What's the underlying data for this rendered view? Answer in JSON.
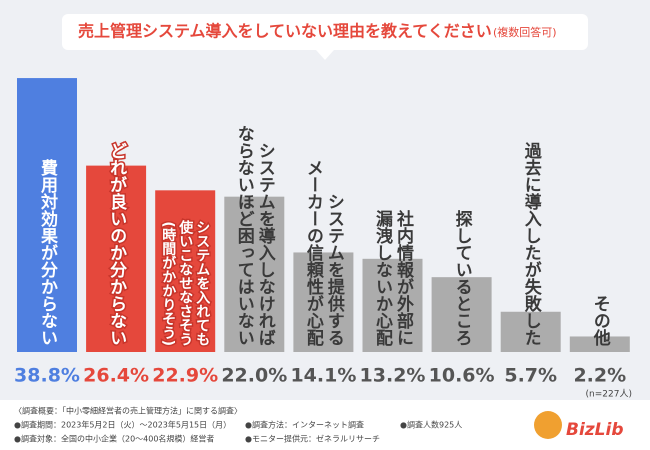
{
  "chart_data": {
    "type": "bar",
    "title": "売上管理システム導入をしていない理由を教えてください",
    "subtitle": "(複数回答可)",
    "categories": [
      [
        "費用対効果が分からない"
      ],
      [
        "どれが良いのか分からない"
      ],
      [
        "システムを入れても",
        "使いこなせなさそう",
        "(時間がかかりそう)"
      ],
      [
        "システムを導入しなければ",
        "ならないほど困ってはいない"
      ],
      [
        "システムを提供する",
        "メーカーの信頼性が心配"
      ],
      [
        "社内情報が外部に",
        "漏洩しないか心配"
      ],
      [
        "探しているところ"
      ],
      [
        "過去に導入したが失敗した"
      ],
      [
        "その他"
      ]
    ],
    "values": [
      38.8,
      26.4,
      22.9,
      22.0,
      14.1,
      13.2,
      10.6,
      5.7,
      2.2
    ],
    "value_labels": [
      "38.8%",
      "26.4%",
      "22.9%",
      "22.0%",
      "14.1%",
      "13.2%",
      "10.6%",
      "5.7%",
      "2.2%"
    ],
    "colors": [
      "#4f7fe0",
      "#e5483c",
      "#e5483c",
      "#acacac",
      "#acacac",
      "#acacac",
      "#acacac",
      "#acacac",
      "#acacac"
    ],
    "ylim": [
      0,
      40
    ],
    "note": "(n=227人)"
  },
  "footer": {
    "heading": "〈調査概要：「中小零細経営者の売上管理方法」に関する調査〉",
    "items": [
      "●調査期間：2023年5月2日（火）〜2023年5月15日（月）",
      "●調査方法：インターネット調査",
      "●調査人数925人",
      "●調査対象：全国の中小企業（20〜400名規模）経営者",
      "●モニター提供元：ゼネラルリサーチ"
    ],
    "logo": "BizLib"
  }
}
